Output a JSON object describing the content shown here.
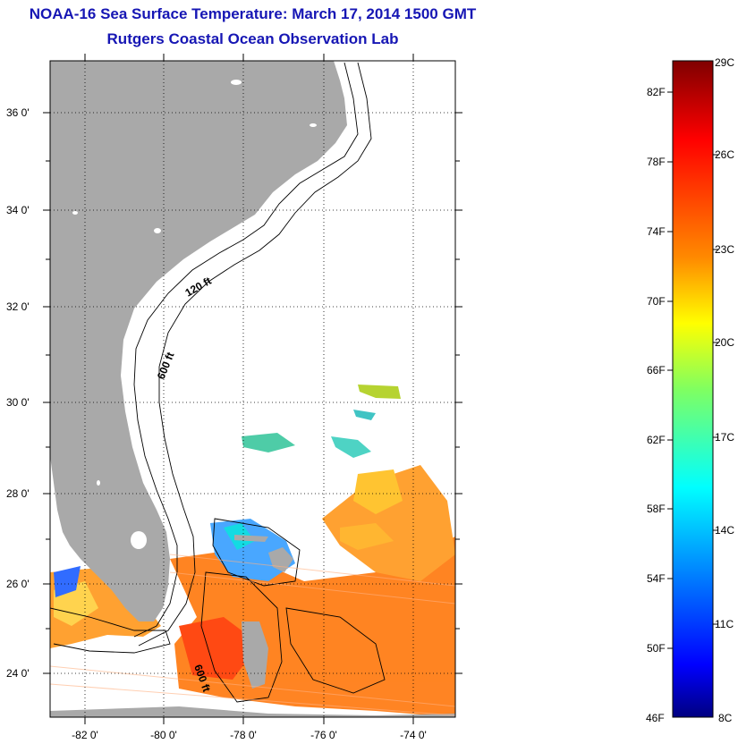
{
  "header": {
    "title": "NOAA-16 Sea Surface Temperature:  March 17, 2014 1500 GMT",
    "subtitle": "Rutgers Coastal Ocean Observation Lab"
  },
  "map": {
    "lat_ticks": [
      "36 0'",
      "34 0'",
      "32 0'",
      "30 0'",
      "28 0'",
      "26 0'",
      "24 0'"
    ],
    "lon_ticks": [
      "-82 0'",
      "-80 0'",
      "-78 0'",
      "-76 0'",
      "-74 0'"
    ],
    "isobath_labels": [
      "120 ft",
      "600 ft",
      "600 ft"
    ],
    "colors": {
      "land": "#a9a9a9",
      "ocean_background": "#ffffff"
    }
  },
  "colorbar": {
    "fahrenheit_labels": [
      "82F",
      "78F",
      "74F",
      "70F",
      "66F",
      "62F",
      "58F",
      "54F",
      "50F",
      "46F"
    ],
    "celsius_labels": [
      "29C",
      "26C",
      "23C",
      "20C",
      "17C",
      "14C",
      "11C",
      "8C"
    ],
    "colors": [
      "#800000",
      "#ff0000",
      "#ff8000",
      "#ffff00",
      "#80ff80",
      "#00ffff",
      "#0080ff",
      "#0000ff",
      "#000080"
    ]
  }
}
